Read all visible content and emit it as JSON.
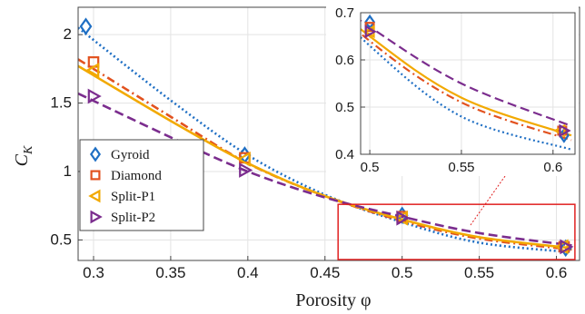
{
  "chart_data": {
    "type": "line",
    "xlabel": "Porosity φ",
    "ylabel_main": "C",
    "ylabel_sub": "K",
    "xlim": [
      0.29,
      0.615
    ],
    "ylim": [
      0.35,
      2.2
    ],
    "xticks": [
      0.3,
      0.35,
      0.4,
      0.45,
      0.5,
      0.55,
      0.6
    ],
    "xtick_labels": [
      "0.3",
      "0.35",
      "0.4",
      "0.45",
      "0.5",
      "0.55",
      "0.6"
    ],
    "yticks": [
      0.5,
      1,
      1.5,
      2
    ],
    "ytick_labels": [
      "0.5",
      "1",
      "1.5",
      "2"
    ],
    "legend_position": "bottom-left",
    "series": [
      {
        "name": "Gyroid",
        "color": "#1f6fc4",
        "marker": "diamond",
        "dash": "dotted",
        "x": [
          0.295,
          0.398,
          0.5,
          0.606
        ],
        "y": [
          2.06,
          1.12,
          0.68,
          0.44
        ]
      },
      {
        "name": "Diamond",
        "color": "#e2521f",
        "marker": "square",
        "dash": "dashdot",
        "x": [
          0.3,
          0.398,
          0.5,
          0.605
        ],
        "y": [
          1.8,
          1.1,
          0.67,
          0.45
        ]
      },
      {
        "name": "Split-P1",
        "color": "#f2a900",
        "marker": "triangle-left",
        "dash": "solid",
        "x": [
          0.3,
          0.398,
          0.5,
          0.604
        ],
        "y": [
          1.74,
          1.09,
          0.66,
          0.45
        ]
      },
      {
        "name": "Split-P2",
        "color": "#7b2d8e",
        "marker": "triangle-right",
        "dash": "dashed",
        "x": [
          0.3,
          0.398,
          0.5,
          0.606
        ],
        "y": [
          1.55,
          1.01,
          0.66,
          0.45
        ]
      }
    ],
    "fit_curves": [
      {
        "series": "Gyroid",
        "x": [
          0.29,
          0.35,
          0.4,
          0.45,
          0.5,
          0.55,
          0.61
        ],
        "y": [
          2.05,
          1.52,
          1.12,
          0.83,
          0.63,
          0.48,
          0.41
        ]
      },
      {
        "series": "Diamond",
        "x": [
          0.29,
          0.35,
          0.4,
          0.45,
          0.5,
          0.55,
          0.61
        ],
        "y": [
          1.82,
          1.4,
          1.06,
          0.82,
          0.64,
          0.51,
          0.43
        ]
      },
      {
        "series": "Split-P1",
        "x": [
          0.29,
          0.35,
          0.4,
          0.45,
          0.5,
          0.55,
          0.61
        ],
        "y": [
          1.77,
          1.37,
          1.06,
          0.82,
          0.65,
          0.52,
          0.44
        ]
      },
      {
        "series": "Split-P2",
        "x": [
          0.29,
          0.35,
          0.4,
          0.45,
          0.5,
          0.55,
          0.61
        ],
        "y": [
          1.57,
          1.25,
          1.0,
          0.81,
          0.67,
          0.55,
          0.46
        ]
      }
    ],
    "highlight_box": {
      "xlim": [
        0.495,
        0.612
      ],
      "ylim": [
        0.35,
        0.76
      ],
      "color": "#e02020"
    },
    "inset": {
      "xlim": [
        0.495,
        0.612
      ],
      "ylim": [
        0.4,
        0.7
      ],
      "xticks": [
        0.5,
        0.55,
        0.6
      ],
      "xtick_labels": [
        "0.5",
        "0.55",
        "0.6"
      ],
      "yticks": [
        0.4,
        0.5,
        0.6,
        0.7
      ],
      "ytick_labels": [
        "0.4",
        "0.5",
        "0.6",
        "0.7"
      ]
    }
  }
}
